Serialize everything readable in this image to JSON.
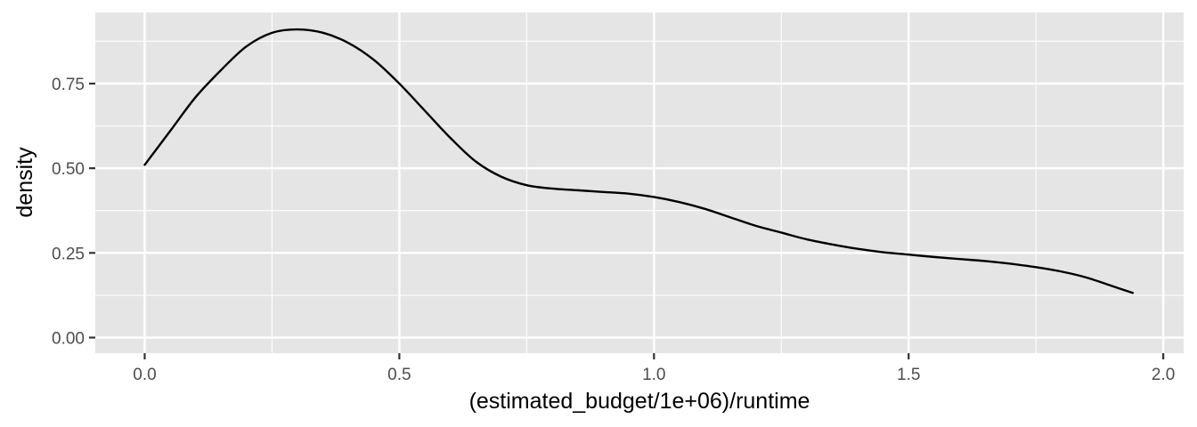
{
  "chart_data": {
    "type": "line",
    "title": "",
    "xlabel": "(estimated_budget/1e+06)/runtime",
    "ylabel": "density",
    "xlim": [
      -0.097,
      2.04
    ],
    "ylim": [
      -0.046,
      0.96
    ],
    "x_ticks": [
      0.0,
      0.5,
      1.0,
      1.5,
      2.0
    ],
    "x_tick_labels": [
      "0.0",
      "0.5",
      "1.0",
      "1.5",
      "2.0"
    ],
    "x_minor_ticks": [
      0.25,
      0.75,
      1.25,
      1.75
    ],
    "y_ticks": [
      0.0,
      0.25,
      0.5,
      0.75
    ],
    "y_tick_labels": [
      "0.00",
      "0.25",
      "0.50",
      "0.75"
    ],
    "y_minor_ticks": [
      0.125,
      0.375,
      0.625,
      0.875
    ],
    "grid": true,
    "legend": "none",
    "colors": {
      "panel_background": "#e5e5e5",
      "gridline": "#ffffff",
      "line": "#000000",
      "tick_label": "#4d4d4d",
      "axis_title": "#000000"
    },
    "series": [
      {
        "x": [
          0.0,
          0.05,
          0.1,
          0.15,
          0.2,
          0.25,
          0.3,
          0.35,
          0.4,
          0.45,
          0.5,
          0.55,
          0.6,
          0.65,
          0.7,
          0.75,
          0.8,
          0.85,
          0.9,
          0.95,
          1.0,
          1.05,
          1.1,
          1.15,
          1.2,
          1.25,
          1.3,
          1.35,
          1.4,
          1.45,
          1.5,
          1.55,
          1.6,
          1.65,
          1.7,
          1.75,
          1.8,
          1.85,
          1.9,
          1.94
        ],
        "values": [
          0.51,
          0.61,
          0.71,
          0.79,
          0.86,
          0.9,
          0.91,
          0.9,
          0.87,
          0.82,
          0.75,
          0.67,
          0.59,
          0.52,
          0.475,
          0.45,
          0.44,
          0.435,
          0.43,
          0.425,
          0.415,
          0.4,
          0.38,
          0.355,
          0.33,
          0.31,
          0.29,
          0.275,
          0.262,
          0.252,
          0.245,
          0.238,
          0.232,
          0.226,
          0.218,
          0.208,
          0.195,
          0.177,
          0.152,
          0.132
        ]
      }
    ]
  }
}
